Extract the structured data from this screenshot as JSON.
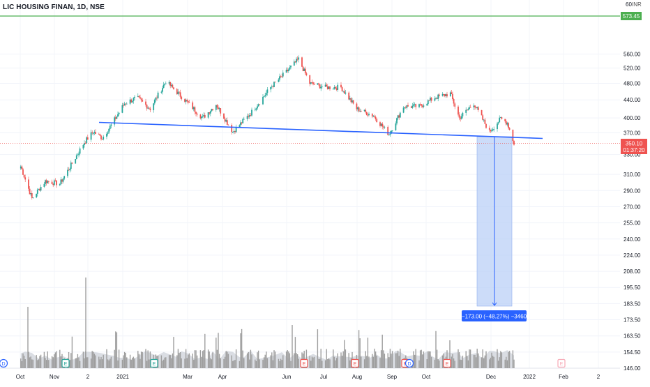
{
  "header": {
    "symbol_title": "LIC HOUSING FINAN, 1D, NSE",
    "currency": "INR",
    "top_tick": "60"
  },
  "price_axis": {
    "ticks": [
      "560.00",
      "520.00",
      "480.00",
      "440.00",
      "400.00",
      "370.00",
      "330.00",
      "310.00",
      "290.00",
      "270.00",
      "255.00",
      "240.00",
      "224.00",
      "208.00",
      "195.50",
      "183.50",
      "173.50",
      "163.50",
      "154.50",
      "146.00"
    ],
    "resistance_label": "573.45",
    "last_price_label": "350.10",
    "countdown_label": "01:37:20"
  },
  "time_axis": {
    "labels": [
      "Oct",
      "Nov",
      "2",
      "2021",
      "Mar",
      "Apr",
      "Jun",
      "Jul",
      "Aug",
      "Sep",
      "Oct",
      "Dec",
      "2022",
      "Feb",
      "2"
    ]
  },
  "measure": {
    "label": "−173.00 (−48.27%) −3460"
  },
  "event_markers": [
    {
      "letter": "D",
      "kind": "dividend"
    },
    {
      "letter": "E",
      "kind": "earnings"
    },
    {
      "letter": "E",
      "kind": "earnings"
    },
    {
      "letter": "E",
      "kind": "earnings"
    },
    {
      "letter": "E",
      "kind": "earnings"
    },
    {
      "letter": "E",
      "kind": "earnings"
    },
    {
      "letter": "D",
      "kind": "dividend"
    },
    {
      "letter": "E",
      "kind": "earnings"
    },
    {
      "letter": "E",
      "kind": "earnings-upcoming"
    }
  ],
  "colors": {
    "up": "#26a69a",
    "down": "#ef5350",
    "trendline": "#2962ff",
    "resistance": "#4caf50",
    "measure_fill": "#bbd0f7",
    "measure_label_bg": "#2962ff",
    "volume": "#9e9e9e"
  },
  "chart_data": {
    "type": "candlestick",
    "title": "LIC HOUSING FINAN, 1D, NSE",
    "ylabel": "INR",
    "y_scale": "log",
    "last_price": 350.1,
    "resistance_level": 573.45,
    "neckline_points": [
      [
        "Nov 26, 2020",
        382
      ],
      [
        "Dec 20, 2021",
        355
      ]
    ],
    "projected_move": {
      "change": -173.0,
      "percent": -48.27,
      "bars": -3460
    },
    "price_path": [
      [
        "Sep 28, 2020",
        310
      ],
      [
        "Oct 8, 2020",
        262
      ],
      [
        "Oct 20, 2020",
        287
      ],
      [
        "Nov 2, 2020",
        283
      ],
      [
        "Nov 12, 2020",
        312
      ],
      [
        "Nov 24, 2020",
        352
      ],
      [
        "Dec 2, 2020",
        372
      ],
      [
        "Dec 10, 2020",
        360
      ],
      [
        "Dec 18, 2020",
        385
      ],
      [
        "Dec 30, 2020",
        432
      ],
      [
        "Jan 10, 2021",
        445
      ],
      [
        "Jan 22, 2021",
        420
      ],
      [
        "Feb 5, 2021",
        485
      ],
      [
        "Feb 22, 2021",
        440
      ],
      [
        "Mar 10, 2021",
        400
      ],
      [
        "Mar 22, 2021",
        430
      ],
      [
        "Apr 6, 2021",
        372
      ],
      [
        "Apr 22, 2021",
        410
      ],
      [
        "May 10, 2021",
        470
      ],
      [
        "May 24, 2021",
        510
      ],
      [
        "Jun 4, 2021",
        545
      ],
      [
        "Jun 14, 2021",
        480
      ],
      [
        "Jun 28, 2021",
        470
      ],
      [
        "Jul 12, 2021",
        470
      ],
      [
        "Jul 26, 2021",
        420
      ],
      [
        "Aug 10, 2021",
        405
      ],
      [
        "Aug 24, 2021",
        367
      ],
      [
        "Sep 6, 2021",
        425
      ],
      [
        "Sep 20, 2021",
        425
      ],
      [
        "Oct 4, 2021",
        445
      ],
      [
        "Oct 18, 2021",
        455
      ],
      [
        "Oct 26, 2021",
        400
      ],
      [
        "Nov 8, 2021",
        432
      ],
      [
        "Nov 22, 2021",
        372
      ],
      [
        "Dec 2, 2021",
        398
      ],
      [
        "Dec 8, 2021",
        390
      ],
      [
        "Dec 14, 2021",
        350
      ]
    ]
  }
}
